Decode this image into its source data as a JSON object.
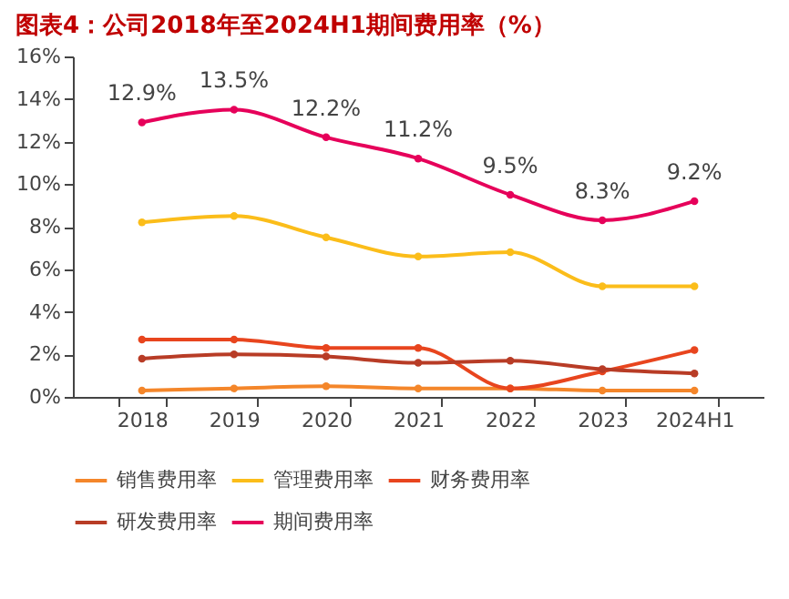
{
  "chart_data": {
    "type": "line",
    "title": "图表4：公司2018年至2024H1期间费用率（%）",
    "categories": [
      "2018",
      "2019",
      "2020",
      "2021",
      "2022",
      "2023",
      "2024H1"
    ],
    "series": [
      {
        "name": "销售费用率",
        "color": "#f4862a",
        "values": [
          0.3,
          0.4,
          0.5,
          0.4,
          0.4,
          0.3,
          0.3
        ]
      },
      {
        "name": "管理费用率",
        "color": "#fbbd1a",
        "values": [
          8.2,
          8.5,
          7.5,
          6.6,
          6.8,
          5.2,
          5.2
        ]
      },
      {
        "name": "财务费用率",
        "color": "#e8451e",
        "values": [
          2.7,
          2.7,
          2.3,
          2.3,
          0.4,
          1.2,
          2.2
        ]
      },
      {
        "name": "研发费用率",
        "color": "#b83c26",
        "values": [
          1.8,
          2.0,
          1.9,
          1.6,
          1.7,
          1.3,
          1.1
        ]
      },
      {
        "name": "期间费用率",
        "color": "#e6005a",
        "values": [
          12.9,
          13.5,
          12.2,
          11.2,
          9.5,
          8.3,
          9.2
        ],
        "value_labels": [
          "12.9%",
          "13.5%",
          "12.2%",
          "11.2%",
          "9.5%",
          "8.3%",
          "9.2%"
        ]
      }
    ],
    "ylim": [
      0,
      16
    ],
    "yticks": [
      {
        "value": 0,
        "label": "0%"
      },
      {
        "value": 2,
        "label": "2%"
      },
      {
        "value": 4,
        "label": "4%"
      },
      {
        "value": 6,
        "label": "6%"
      },
      {
        "value": 8,
        "label": "8%"
      },
      {
        "value": 10,
        "label": "10%"
      },
      {
        "value": 12,
        "label": "12%"
      },
      {
        "value": 14,
        "label": "14%"
      },
      {
        "value": 16,
        "label": "16%"
      }
    ],
    "grid": false,
    "legend": "bottom",
    "marker": "circle",
    "line_style": "solid"
  }
}
